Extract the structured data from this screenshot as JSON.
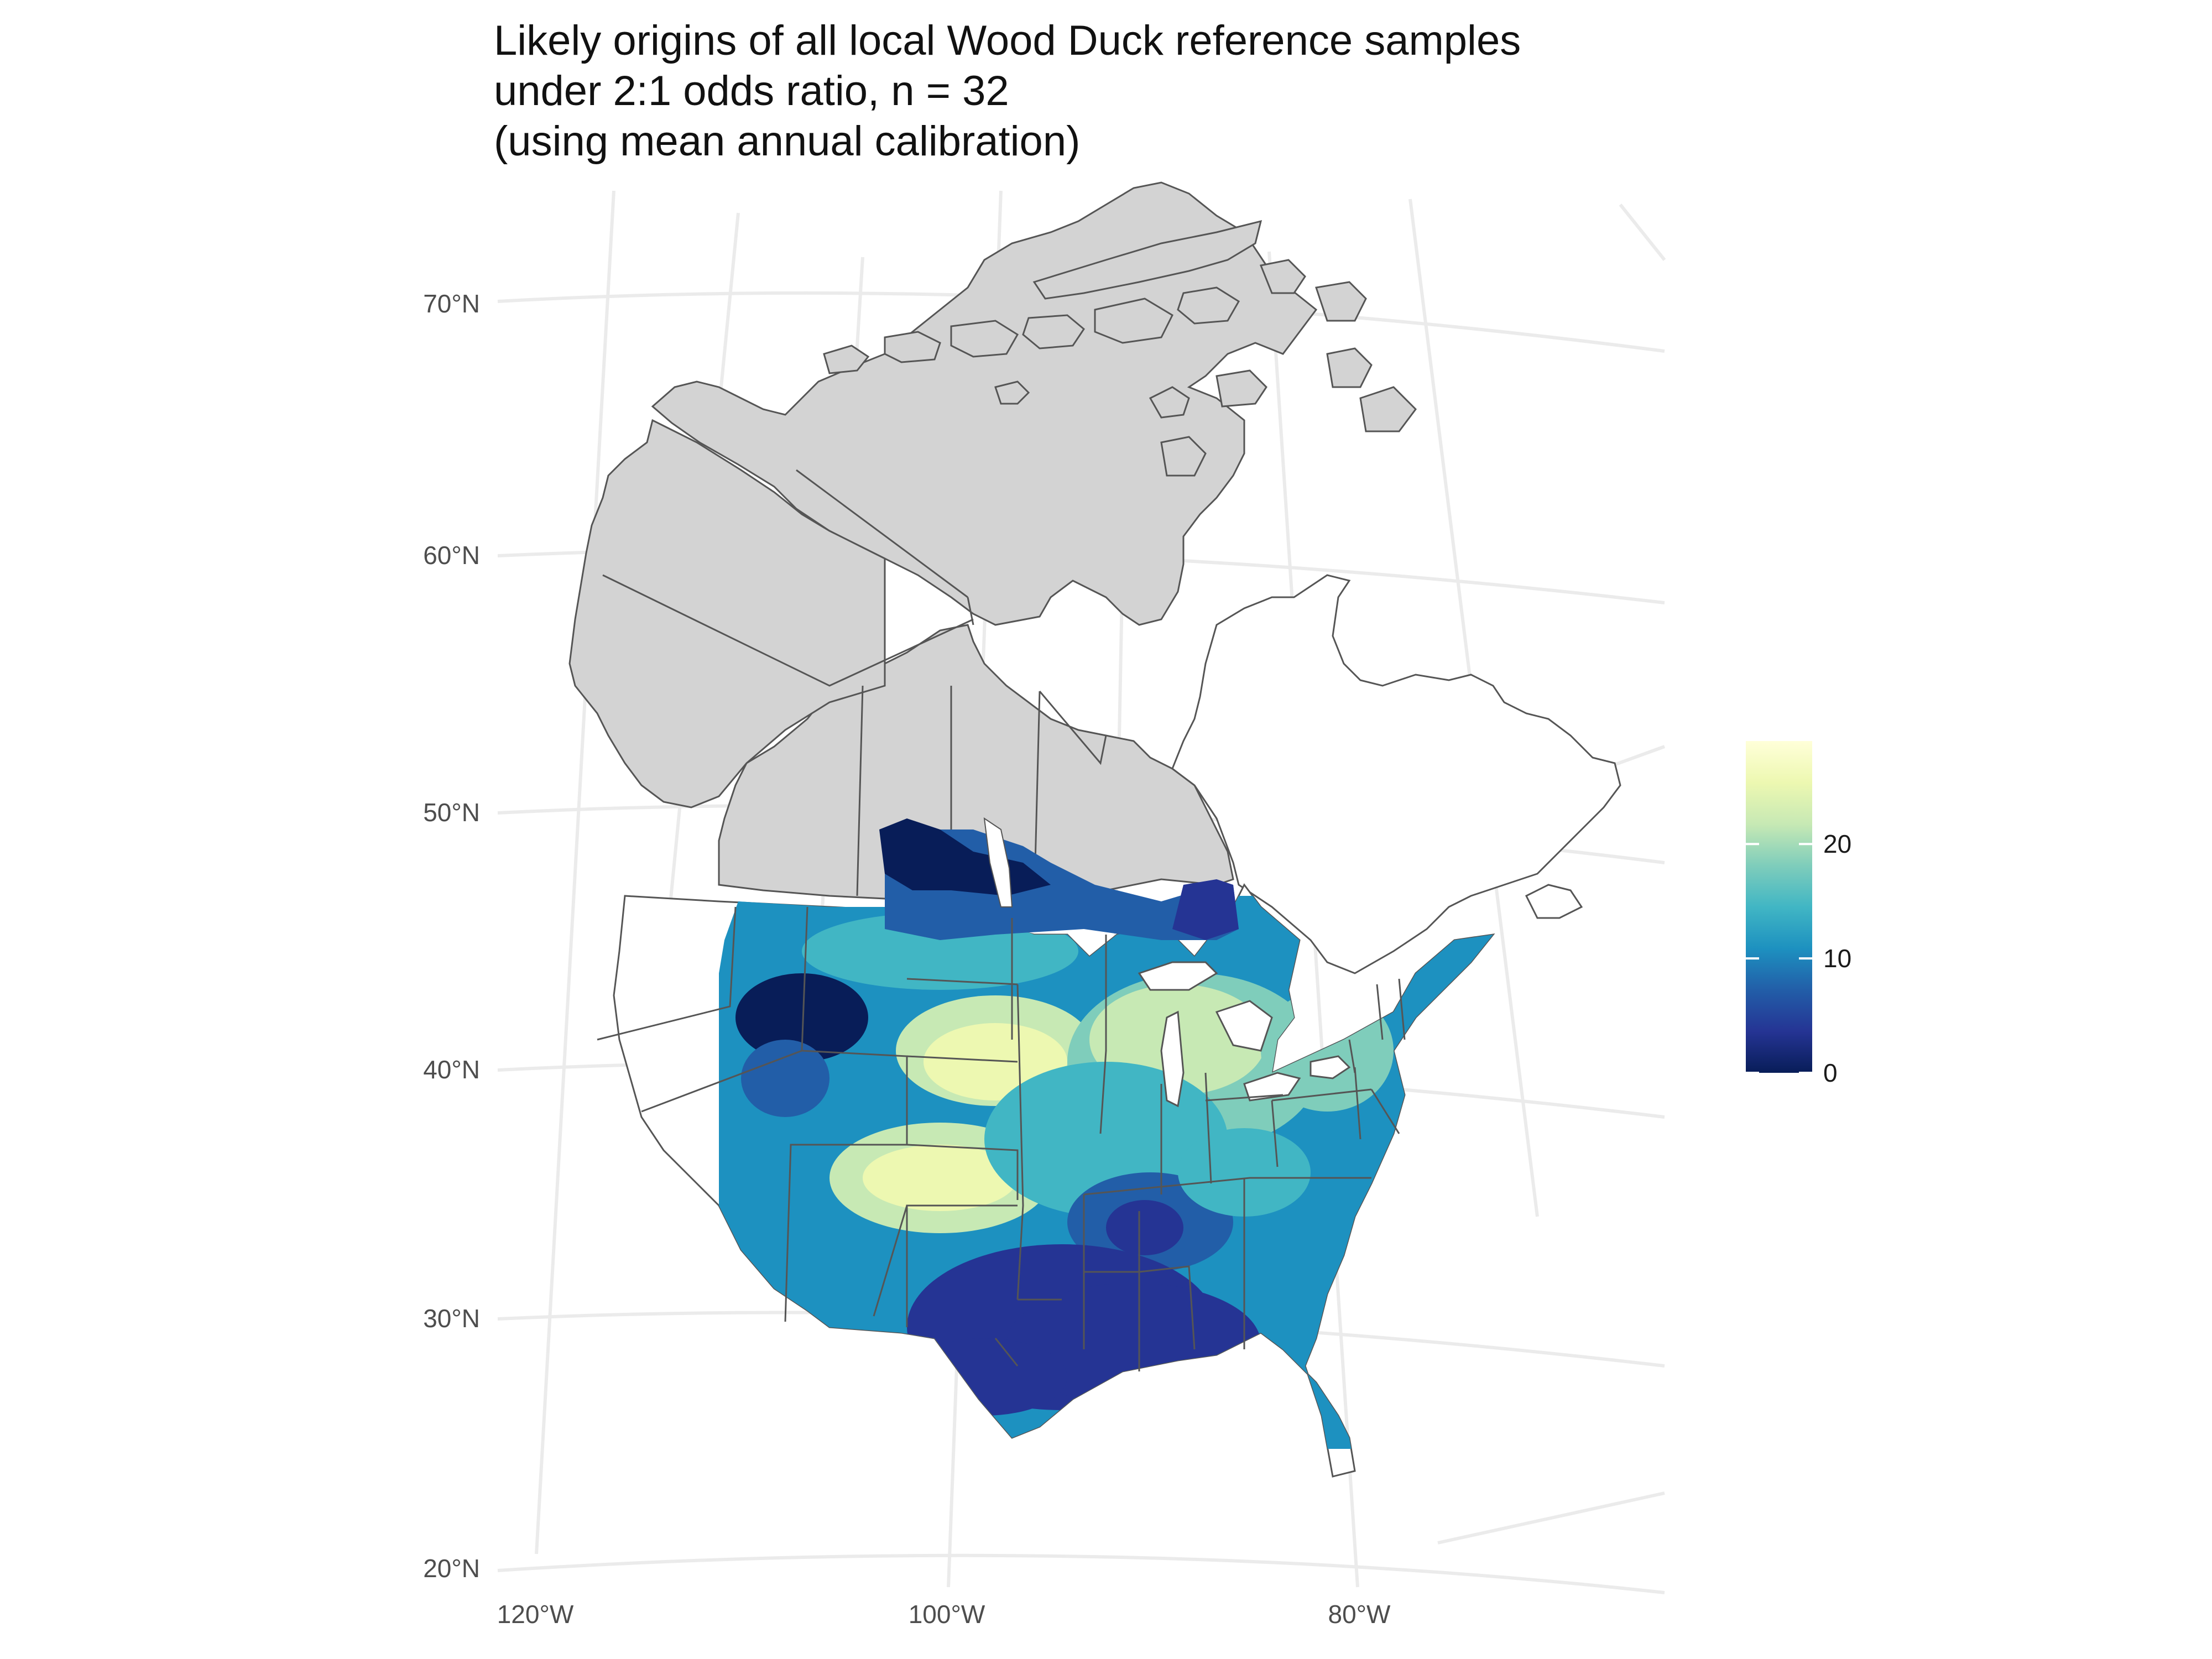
{
  "title": {
    "lines": [
      "Likely origins of all local Wood Duck reference samples",
      "under 2:1 odds ratio, n = 32",
      "(using mean annual calibration)"
    ]
  },
  "axes": {
    "lat_labels": [
      "70°N",
      "60°N",
      "50°N",
      "40°N",
      "30°N",
      "20°N"
    ],
    "lon_labels": [
      "120°W",
      "100°W",
      "80°W"
    ]
  },
  "legend": {
    "ticks": [
      "20",
      "10",
      "0"
    ],
    "tick_values": [
      20,
      10,
      0
    ],
    "range": [
      0,
      29
    ],
    "colors": [
      "#081d58",
      "#253494",
      "#225ea8",
      "#1d91c0",
      "#41b6c4",
      "#7fcdbb",
      "#c7e9b4",
      "#edf8b1",
      "#ffffd9"
    ]
  },
  "map_style": {
    "land_fill": "#d3d3d3",
    "outline": "#555555",
    "graticule": "#ebebeb"
  }
}
